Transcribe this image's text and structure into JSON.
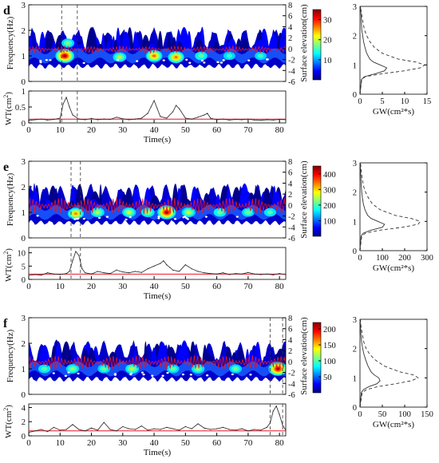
{
  "figure": {
    "colors": {
      "jet": [
        "#00007f",
        "#0000ff",
        "#007fff",
        "#00ffff",
        "#7fff7f",
        "#ffff00",
        "#ff7f00",
        "#ff0000",
        "#7f0000"
      ],
      "signal": "#e8172a",
      "threshold": "#e8172a",
      "trace": "#222222",
      "axis": "#000000"
    },
    "panels": [
      {
        "letter": "d",
        "ylabel_spec": "Frequency(Hz)",
        "ylabel_elev": "Surface elevation(cm)",
        "ylabel_wt": "WT(cm²)",
        "wt_base": "WT(cm",
        "wt_sup": "2",
        "wt_end": ")",
        "xlabel": "Time(s)",
        "xlabel_gw": "GW(cm²*s)",
        "freq_ticks": [
          "0",
          "1",
          "2",
          "3"
        ],
        "elev_ticks": [
          "-6",
          "-4",
          "-2",
          "0",
          "2",
          "4",
          "6",
          "8"
        ],
        "time_ticks": [
          "0",
          "10",
          "20",
          "30",
          "40",
          "50",
          "60",
          "70",
          "80"
        ],
        "wt_ticks": [
          "0",
          "0.5",
          "1"
        ],
        "cbar_ticks": [
          "10",
          "20",
          "30"
        ],
        "gw_ticks": [
          "0",
          "5",
          "10",
          "15"
        ],
        "gw_yticks": [
          "0",
          "1",
          "2",
          "3"
        ],
        "dashed_times": [
          10.5,
          15.5
        ]
      },
      {
        "letter": "e",
        "ylabel_spec": "Frequency(Hz)",
        "ylabel_elev": "Surface elevation(cm)",
        "wt_base": "WT(cm",
        "wt_sup": "2",
        "wt_end": ")",
        "xlabel": "Time(s)",
        "xlabel_gw": "GW(cm²*s)",
        "freq_ticks": [
          "0",
          "1",
          "2",
          "3"
        ],
        "elev_ticks": [
          "-6",
          "-4",
          "-2",
          "0",
          "2",
          "4",
          "6",
          "8"
        ],
        "time_ticks": [
          "0",
          "10",
          "20",
          "30",
          "40",
          "50",
          "60",
          "70",
          "80"
        ],
        "wt_ticks": [
          "0",
          "5",
          "10"
        ],
        "cbar_ticks": [
          "100",
          "200",
          "300",
          "400"
        ],
        "gw_ticks": [
          "0",
          "100",
          "200",
          "300"
        ],
        "gw_yticks": [
          "0",
          "1",
          "2",
          "3"
        ],
        "dashed_times": [
          13.5,
          16.5
        ]
      },
      {
        "letter": "f",
        "ylabel_spec": "Frequency(Hz)",
        "ylabel_elev": "Surface elevation(cm)",
        "wt_base": "WT(cm",
        "wt_sup": "2",
        "wt_end": ")",
        "xlabel": "Time(s)",
        "xlabel_gw": "GW(cm²*s)",
        "freq_ticks": [
          "0",
          "1",
          "2",
          "3"
        ],
        "elev_ticks": [
          "-6",
          "-4",
          "-2",
          "0",
          "2",
          "4",
          "6",
          "8"
        ],
        "time_ticks": [
          "0",
          "10",
          "20",
          "30",
          "40",
          "50",
          "60",
          "70",
          "80"
        ],
        "wt_ticks": [
          "0",
          "2",
          "4"
        ],
        "cbar_ticks": [
          "50",
          "100",
          "150",
          "200"
        ],
        "gw_ticks": [
          "0",
          "50",
          "100",
          "150"
        ],
        "gw_yticks": [
          "0",
          "1",
          "2",
          "3"
        ],
        "dashed_times": [
          77,
          81
        ]
      }
    ]
  },
  "chart_data": [
    {
      "type": "heatmap",
      "panel": "d",
      "xlabel": "Time(s)",
      "ylabel": "Frequency(Hz)",
      "ylabel_right": "Surface elevation(cm)",
      "xlim": [
        0,
        82
      ],
      "ylim": [
        0,
        3
      ],
      "y2lim": [
        -6,
        8
      ],
      "clim": [
        0,
        35
      ],
      "hotspots": [
        {
          "t": 11.5,
          "f": 1.0,
          "v": 34
        },
        {
          "t": 12.5,
          "f": 1.5,
          "v": 12
        },
        {
          "t": 29,
          "f": 0.95,
          "v": 14
        },
        {
          "t": 40,
          "f": 1.0,
          "v": 25
        },
        {
          "t": 47,
          "f": 0.95,
          "v": 24
        },
        {
          "t": 55,
          "f": 1.0,
          "v": 10
        },
        {
          "t": 64,
          "f": 1.0,
          "v": 8
        },
        {
          "t": 74,
          "f": 1.0,
          "v": 8
        }
      ],
      "dashed_times": [
        10.5,
        15.5
      ]
    },
    {
      "type": "line",
      "panel": "d-wt",
      "xlabel": "Time(s)",
      "ylabel": "WT(cm²)",
      "xlim": [
        0,
        82
      ],
      "ylim": [
        0,
        1
      ],
      "x": [
        0,
        2,
        4,
        6,
        8,
        10,
        11,
        12,
        13,
        14,
        16,
        18,
        20,
        22,
        24,
        26,
        28,
        30,
        32,
        34,
        36,
        38,
        39,
        40,
        41,
        42,
        44,
        46,
        47,
        48,
        50,
        52,
        54,
        56,
        57,
        58,
        60,
        62,
        64,
        66,
        68,
        70,
        72,
        74,
        76,
        78,
        80,
        82
      ],
      "y": [
        0.08,
        0.1,
        0.12,
        0.09,
        0.11,
        0.15,
        0.6,
        0.8,
        0.5,
        0.25,
        0.12,
        0.1,
        0.14,
        0.1,
        0.12,
        0.11,
        0.18,
        0.13,
        0.1,
        0.12,
        0.15,
        0.3,
        0.5,
        0.7,
        0.45,
        0.2,
        0.15,
        0.35,
        0.55,
        0.45,
        0.15,
        0.12,
        0.18,
        0.25,
        0.3,
        0.15,
        0.1,
        0.12,
        0.09,
        0.11,
        0.1,
        0.12,
        0.09,
        0.08,
        0.1,
        0.09,
        0.11,
        0.1
      ],
      "threshold": 0.12
    },
    {
      "type": "line",
      "panel": "d-gw",
      "xlabel": "GW(cm²*s)",
      "ylabel": "",
      "xlim": [
        0,
        15
      ],
      "ylim": [
        0,
        3
      ],
      "series": [
        {
          "style": "solid",
          "f": [
            0,
            0.5,
            0.6,
            0.7,
            0.8,
            0.9,
            1.0,
            1.1,
            1.2,
            1.4,
            1.6,
            1.8,
            2.0,
            2.2,
            2.5,
            2.8,
            3.0
          ],
          "v": [
            0,
            0.3,
            1.0,
            3.5,
            5.5,
            6.0,
            4.5,
            3.0,
            2.2,
            1.5,
            1.1,
            0.8,
            0.6,
            0.4,
            0.3,
            0.2,
            0.1
          ]
        },
        {
          "style": "dashed",
          "f": [
            0,
            0.5,
            0.6,
            0.7,
            0.8,
            0.9,
            1.0,
            1.1,
            1.2,
            1.4,
            1.6,
            1.8,
            2.0,
            2.2,
            2.5,
            2.8,
            3.0
          ],
          "v": [
            0,
            0.4,
            1.2,
            5.0,
            10.0,
            13.5,
            14.5,
            12.5,
            8.5,
            5.0,
            3.2,
            2.2,
            1.5,
            1.0,
            0.6,
            0.3,
            0.1
          ]
        }
      ]
    },
    {
      "type": "heatmap",
      "panel": "e",
      "xlabel": "Time(s)",
      "ylabel": "Frequency(Hz)",
      "ylabel_right": "Surface elevation(cm)",
      "xlim": [
        0,
        82
      ],
      "ylim": [
        0,
        3
      ],
      "y2lim": [
        -6,
        8
      ],
      "clim": [
        0,
        450
      ],
      "hotspots": [
        {
          "t": 15,
          "f": 0.95,
          "v": 300
        },
        {
          "t": 22,
          "f": 1.0,
          "v": 180
        },
        {
          "t": 32,
          "f": 1.0,
          "v": 200
        },
        {
          "t": 38,
          "f": 1.0,
          "v": 180
        },
        {
          "t": 44,
          "f": 1.0,
          "v": 430
        },
        {
          "t": 51,
          "f": 1.0,
          "v": 200
        },
        {
          "t": 61,
          "f": 1.0,
          "v": 140
        },
        {
          "t": 70,
          "f": 1.0,
          "v": 150
        },
        {
          "t": 77,
          "f": 1.0,
          "v": 120
        }
      ],
      "dashed_times": [
        13.5,
        16.5
      ]
    },
    {
      "type": "line",
      "panel": "e-wt",
      "xlabel": "Time(s)",
      "ylabel": "WT(cm²)",
      "xlim": [
        0,
        82
      ],
      "ylim": [
        0,
        12
      ],
      "x": [
        0,
        2,
        4,
        6,
        8,
        10,
        12,
        13,
        14,
        15,
        16,
        17,
        18,
        20,
        22,
        24,
        26,
        28,
        30,
        32,
        34,
        36,
        38,
        40,
        42,
        43,
        44,
        45,
        46,
        48,
        50,
        52,
        54,
        56,
        58,
        60,
        62,
        64,
        66,
        68,
        70,
        72,
        74,
        76,
        78,
        80,
        82
      ],
      "y": [
        1.5,
        1.8,
        1.6,
        2.5,
        2.0,
        1.8,
        2.2,
        3.0,
        7.0,
        10.5,
        9.0,
        4.0,
        2.5,
        2.0,
        3.0,
        2.5,
        2.2,
        3.5,
        2.8,
        2.5,
        3.0,
        2.6,
        4.0,
        5.0,
        6.0,
        7.0,
        5.5,
        4.5,
        3.5,
        3.0,
        5.5,
        4.0,
        3.0,
        2.5,
        2.2,
        2.0,
        2.5,
        1.8,
        2.2,
        2.0,
        2.6,
        2.0,
        1.8,
        2.0,
        1.7,
        2.2,
        1.8
      ],
      "threshold": 2.0
    },
    {
      "type": "line",
      "panel": "e-gw",
      "xlabel": "GW(cm²*s)",
      "ylabel": "",
      "xlim": [
        0,
        300
      ],
      "ylim": [
        0,
        3
      ],
      "series": [
        {
          "style": "solid",
          "f": [
            0,
            0.5,
            0.6,
            0.7,
            0.8,
            0.9,
            1.0,
            1.1,
            1.2,
            1.4,
            1.6,
            1.8,
            2.0,
            2.2,
            2.5,
            2.8,
            3.0
          ],
          "v": [
            0,
            5,
            15,
            50,
            100,
            110,
            80,
            50,
            35,
            22,
            15,
            11,
            8,
            6,
            4,
            2,
            1
          ]
        },
        {
          "style": "dashed",
          "f": [
            0,
            0.5,
            0.6,
            0.7,
            0.8,
            0.9,
            1.0,
            1.1,
            1.2,
            1.4,
            1.6,
            1.8,
            2.0,
            2.2,
            2.5,
            2.8,
            3.0
          ],
          "v": [
            0,
            8,
            25,
            90,
            190,
            260,
            270,
            230,
            160,
            90,
            55,
            38,
            25,
            16,
            9,
            5,
            2
          ]
        }
      ]
    },
    {
      "type": "heatmap",
      "panel": "f",
      "xlabel": "Time(s)",
      "ylabel": "Frequency(Hz)",
      "ylabel_right": "Surface elevation(cm)",
      "xlim": [
        0,
        82
      ],
      "ylim": [
        0,
        3
      ],
      "y2lim": [
        -6,
        8
      ],
      "clim": [
        0,
        220
      ],
      "hotspots": [
        {
          "t": 5,
          "f": 1.0,
          "v": 60
        },
        {
          "t": 14,
          "f": 1.0,
          "v": 80
        },
        {
          "t": 24,
          "f": 1.0,
          "v": 70
        },
        {
          "t": 33,
          "f": 1.0,
          "v": 90
        },
        {
          "t": 46,
          "f": 1.0,
          "v": 70
        },
        {
          "t": 54,
          "f": 1.0,
          "v": 80
        },
        {
          "t": 66,
          "f": 1.0,
          "v": 70
        },
        {
          "t": 79.5,
          "f": 1.0,
          "v": 210
        }
      ],
      "dashed_times": [
        77,
        81
      ]
    },
    {
      "type": "line",
      "panel": "f-wt",
      "xlabel": "Time(s)",
      "ylabel": "WT(cm²)",
      "xlim": [
        0,
        82
      ],
      "ylim": [
        0,
        4.5
      ],
      "x": [
        0,
        2,
        4,
        6,
        8,
        10,
        12,
        14,
        16,
        18,
        20,
        22,
        24,
        26,
        28,
        30,
        32,
        34,
        36,
        38,
        40,
        42,
        44,
        46,
        48,
        50,
        52,
        54,
        56,
        58,
        60,
        62,
        64,
        66,
        68,
        70,
        72,
        74,
        76,
        77,
        78,
        79,
        80,
        81,
        82
      ],
      "y": [
        0.5,
        0.7,
        0.9,
        0.6,
        1.2,
        0.8,
        0.9,
        1.6,
        0.9,
        0.7,
        1.1,
        0.8,
        1.9,
        0.9,
        0.7,
        1.3,
        1.0,
        0.9,
        1.4,
        0.8,
        1.0,
        0.9,
        1.2,
        1.0,
        0.8,
        1.3,
        1.0,
        1.7,
        1.1,
        0.9,
        1.0,
        1.2,
        0.9,
        0.8,
        1.0,
        0.7,
        0.9,
        0.8,
        1.2,
        1.8,
        3.5,
        4.2,
        3.0,
        1.5,
        0.8
      ],
      "threshold": 0.7
    },
    {
      "type": "line",
      "panel": "f-gw",
      "xlabel": "GW(cm²*s)",
      "ylabel": "",
      "xlim": [
        0,
        150
      ],
      "ylim": [
        0,
        3
      ],
      "series": [
        {
          "style": "solid",
          "f": [
            0,
            0.5,
            0.6,
            0.7,
            0.8,
            0.9,
            1.0,
            1.1,
            1.2,
            1.4,
            1.6,
            1.8,
            2.0,
            2.2,
            2.5,
            2.8,
            3.0
          ],
          "v": [
            0,
            3,
            8,
            20,
            38,
            45,
            42,
            32,
            25,
            18,
            13,
            9,
            6,
            4,
            2,
            1,
            0.5
          ]
        },
        {
          "style": "dashed",
          "f": [
            0,
            0.5,
            0.6,
            0.7,
            0.8,
            0.9,
            1.0,
            1.1,
            1.2,
            1.4,
            1.6,
            1.8,
            2.0,
            2.2,
            2.5,
            2.8,
            3.0
          ],
          "v": [
            0,
            5,
            15,
            40,
            80,
            115,
            130,
            120,
            90,
            55,
            35,
            22,
            14,
            9,
            5,
            2,
            1
          ]
        }
      ]
    }
  ]
}
